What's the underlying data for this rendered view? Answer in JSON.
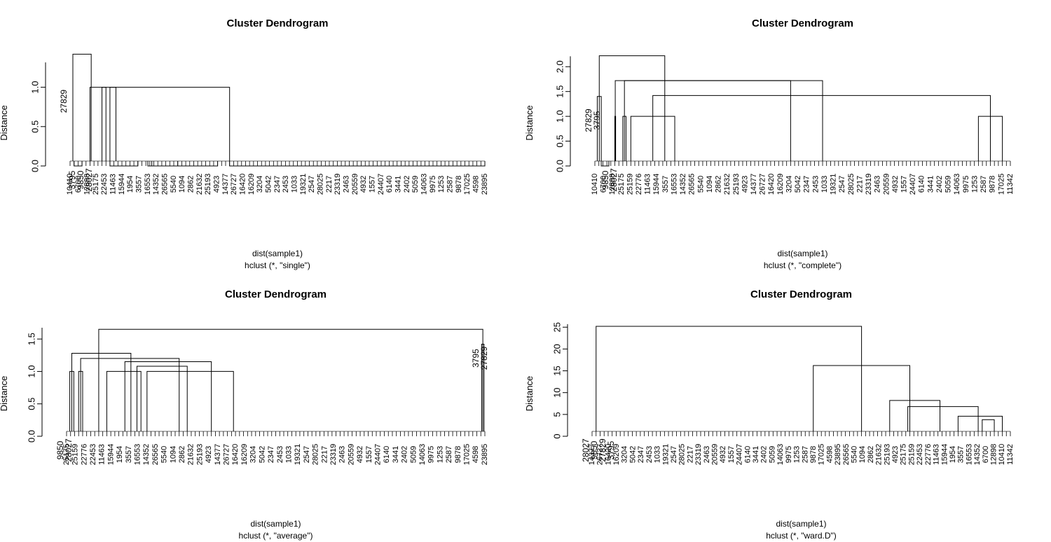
{
  "chart_data": [
    {
      "type": "dendrogram",
      "title": "Cluster Dendrogram",
      "ylabel": "Distance",
      "xlabel": "dist(sample1)",
      "sub": "hclust (*, \"single\")",
      "ylim": [
        0,
        1.45
      ],
      "yticks": [
        "0.0",
        "0.5",
        "1.0"
      ],
      "yticks_values": [
        0,
        0.5,
        1.0
      ],
      "nleaves": 105,
      "leaves_visible": [
        "10410",
        "6700",
        "12898",
        "25175",
        "22453",
        "11463",
        "15944",
        "1954",
        "3557",
        "16553",
        "14352",
        "26565",
        "5540",
        "1094",
        "2862",
        "21632",
        "25193",
        "4923",
        "14377",
        "26727",
        "16420",
        "16209",
        "3204",
        "5042",
        "2347",
        "2453",
        "1033",
        "19321",
        "2547",
        "28025",
        "2217",
        "23319",
        "2463",
        "20559",
        "4932",
        "1557",
        "24407",
        "6140",
        "3441",
        "2402",
        "5059",
        "14063",
        "9975",
        "1253",
        "2587",
        "9878",
        "17025",
        "4598",
        "23895"
      ],
      "labelled_leaves": [
        {
          "name": "27829",
          "height": 1.0
        },
        {
          "name": "3795",
          "height": 0.0
        },
        {
          "name": "9850",
          "height": 0.0
        },
        {
          "name": "28027",
          "height": 0.0
        }
      ],
      "merges": [
        {
          "x": [
            0.7,
            5.3
          ],
          "height": 1.42
        },
        {
          "x": [
            1.0,
            3.0
          ],
          "height": 0.0
        },
        {
          "x": [
            5,
            40
          ],
          "height": 1.0
        },
        {
          "x": [
            8.0,
            9.0
          ],
          "height": 1.0
        },
        {
          "x": [
            10.0,
            11.5
          ],
          "height": 1.0
        },
        {
          "x": [
            10.0,
            17.0
          ],
          "height": 0.0
        },
        {
          "x": [
            19.5,
            27.0
          ],
          "height": 0.0
        },
        {
          "x": [
            20.5,
            37.0
          ],
          "height": 0.0
        },
        {
          "x": [
            40.0,
            104.0
          ],
          "height": 0.0
        }
      ]
    },
    {
      "type": "dendrogram",
      "title": "Cluster Dendrogram",
      "ylabel": "Distance",
      "xlabel": "dist(sample1)",
      "sub": "hclust (*, \"complete\")",
      "ylim": [
        0,
        2.3
      ],
      "yticks": [
        "0.0",
        "0.5",
        "1.0",
        "1.5",
        "2.0"
      ],
      "yticks_values": [
        0,
        0.5,
        1.0,
        1.5,
        2.0
      ],
      "nleaves": 105,
      "leaves_visible": [
        "10410",
        "6700",
        "12898",
        "25175",
        "25159",
        "22776",
        "11463",
        "15944",
        "3557",
        "16553",
        "14352",
        "26565",
        "5540",
        "1094",
        "2862",
        "21632",
        "25193",
        "4923",
        "14377",
        "26727",
        "16420",
        "16209",
        "3204",
        "5042",
        "2347",
        "2453",
        "1033",
        "19321",
        "2547",
        "28025",
        "2217",
        "23319",
        "2463",
        "20559",
        "4932",
        "1557",
        "24407",
        "6140",
        "3441",
        "2402",
        "5059",
        "14063",
        "9975",
        "1253",
        "2587",
        "9878",
        "17025",
        "11342"
      ],
      "labelled_leaves": [
        {
          "name": "27829",
          "height": 1.2
        },
        {
          "name": "3795",
          "height": 1.2
        },
        {
          "name": "9850",
          "height": 0.0
        },
        {
          "name": "28027",
          "height": 0.0
        }
      ],
      "merges": [
        {
          "x": [
            0.6,
            1.6
          ],
          "height": 1.4
        },
        {
          "x": [
            1.6,
            3.5
          ],
          "height": 0.0
        },
        {
          "x": [
            5.0,
            5.2
          ],
          "height": 1.0
        },
        {
          "x": [
            7.0,
            7.8
          ],
          "height": 1.0
        },
        {
          "x": [
            9.0,
            20.0
          ],
          "height": 1.0
        },
        {
          "x": [
            1.1,
            17.5
          ],
          "height": 2.22
        },
        {
          "x": [
            5.1,
            49.0
          ],
          "height": 1.72
        },
        {
          "x": [
            7.4,
            57.0
          ],
          "height": 1.72
        },
        {
          "x": [
            14.5,
            99.0
          ],
          "height": 1.42
        },
        {
          "x": [
            96.0,
            102.0
          ],
          "height": 1.0
        }
      ]
    },
    {
      "type": "dendrogram",
      "title": "Cluster Dendrogram",
      "ylabel": "Distance",
      "xlabel": "dist(sample1)",
      "sub": "hclust (*, \"average\")",
      "ylim": [
        0,
        1.75
      ],
      "yticks": [
        "0.0",
        "0.5",
        "1.0",
        "1.5"
      ],
      "yticks_values": [
        0,
        0.5,
        1.0,
        1.5
      ],
      "nleaves": 105,
      "leaves_visible": [
        "25175",
        "25159",
        "22776",
        "22453",
        "11463",
        "15944",
        "1954",
        "3557",
        "16553",
        "14352",
        "26565",
        "5540",
        "1094",
        "2862",
        "21632",
        "25193",
        "4923",
        "14377",
        "26727",
        "16420",
        "16209",
        "3204",
        "5042",
        "2347",
        "2453",
        "1033",
        "19321",
        "2547",
        "28025",
        "2217",
        "23319",
        "2463",
        "20559",
        "4932",
        "1557",
        "24407",
        "6140",
        "3441",
        "2402",
        "5059",
        "14063",
        "9975",
        "1253",
        "2587",
        "9878",
        "17025",
        "4598",
        "23895"
      ],
      "labelled_leaves": [
        {
          "name": "9850",
          "height": 0.0
        },
        {
          "name": "28027",
          "height": 0.0
        },
        {
          "name": "3795",
          "height": 1.42
        },
        {
          "name": "27829",
          "height": 1.42
        }
      ],
      "merges": [
        {
          "x": [
            0.8,
            1.8
          ],
          "height": 1.0
        },
        {
          "x": [
            3.0,
            4.0
          ],
          "height": 1.0
        },
        {
          "x": [
            10.0,
            18.5
          ],
          "height": 1.0
        },
        {
          "x": [
            20.0,
            41.5
          ],
          "height": 1.0
        },
        {
          "x": [
            17.5,
            30.0
          ],
          "height": 1.08
        },
        {
          "x": [
            14.5,
            36.0
          ],
          "height": 1.15
        },
        {
          "x": [
            3.5,
            28.0
          ],
          "height": 1.2
        },
        {
          "x": [
            1.3,
            16.0
          ],
          "height": 1.28
        },
        {
          "x": [
            8.0,
            103.5
          ],
          "height": 1.65
        },
        {
          "x": [
            103.2,
            103.8
          ],
          "height": 1.42
        }
      ]
    },
    {
      "type": "dendrogram",
      "title": "Cluster Dendrogram",
      "ylabel": "Distance",
      "xlabel": "dist(sample1)",
      "sub": "hclust (*, \"ward.D\")",
      "ylim": [
        0,
        26
      ],
      "yticks": [
        "0",
        "5",
        "10",
        "15",
        "20",
        "25"
      ],
      "yticks_values": [
        0,
        5,
        10,
        15,
        20,
        25
      ],
      "nleaves": 105,
      "leaves_visible": [
        "14377",
        "26727",
        "16420",
        "16209",
        "3204",
        "5042",
        "2347",
        "2453",
        "1033",
        "19321",
        "2547",
        "28025",
        "2217",
        "23319",
        "2463",
        "20559",
        "4932",
        "1557",
        "24407",
        "6140",
        "3441",
        "2402",
        "5059",
        "14063",
        "9975",
        "1253",
        "2587",
        "9878",
        "17025",
        "4598",
        "23895",
        "26565",
        "5540",
        "1094",
        "2862",
        "21632",
        "25193",
        "4923",
        "25175",
        "25159",
        "22453",
        "22776",
        "11463",
        "15944",
        "1954",
        "3557",
        "16553",
        "14352",
        "6700",
        "12898",
        "10410",
        "11342"
      ],
      "labelled_leaves": [
        {
          "name": "28027",
          "height": 0.0
        },
        {
          "name": "9850",
          "height": 0.0
        },
        {
          "name": "27829",
          "height": 0.0
        },
        {
          "name": "3795",
          "height": 0.0
        }
      ],
      "merges": [
        {
          "x": [
            1.0,
            67.0
          ],
          "height": 25.2
        },
        {
          "x": [
            55.0,
            79.0
          ],
          "height": 16.2
        },
        {
          "x": [
            74.0,
            86.5
          ],
          "height": 8.2
        },
        {
          "x": [
            78.5,
            96.0
          ],
          "height": 6.8
        },
        {
          "x": [
            91.0,
            102.0
          ],
          "height": 4.6
        },
        {
          "x": [
            97.0,
            100.0
          ],
          "height": 3.8
        }
      ]
    }
  ]
}
